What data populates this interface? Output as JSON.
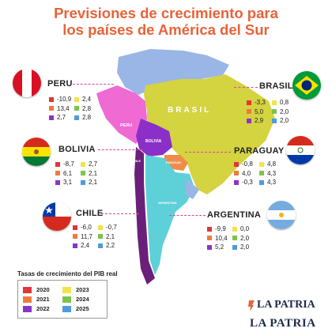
{
  "title_line1": "Previsiones de crecimiento para",
  "title_line2": "los países de América del Sur",
  "map_labels": {
    "brasil": "BRASIL",
    "peru": "PERU",
    "bolivia": "BOLIVIA",
    "paraguay": "PARAGUAY",
    "argentina": "ARGENTINA",
    "chile": "CHILE"
  },
  "colors": {
    "2020": "#e2343b",
    "2021": "#ef7b3a",
    "2022": "#8b34c9",
    "2023": "#f0e44a",
    "2024": "#7cc44a",
    "2025": "#4e9be0"
  },
  "countries": {
    "peru": {
      "name": "PERU",
      "values": [
        "-10,9",
        "2,4",
        "13,4",
        "2,8",
        "2,7",
        "2,8"
      ]
    },
    "brasil": {
      "name": "BRASIL",
      "values": [
        "-3,3",
        "0,8",
        "5,0",
        "2,0",
        "2,9",
        "2,0"
      ]
    },
    "bolivia": {
      "name": "BOLIVIA",
      "values": [
        "-8,7",
        "2,7",
        "6,1",
        "2,1",
        "3,1",
        "2,1"
      ]
    },
    "paraguay": {
      "name": "PARAGUAY",
      "values": [
        "-0,8",
        "4,8",
        "4,0",
        "4,3",
        "-0,3",
        "4,3"
      ]
    },
    "chile": {
      "name": "CHILE",
      "values": [
        "-6,0",
        "-0,7",
        "11,7",
        "2,1",
        "2,4",
        "2,2"
      ]
    },
    "argentina": {
      "name": "ARGENTINA",
      "values": [
        "-9,9",
        "0,0",
        "10,4",
        "2,0",
        "5,2",
        "2,0"
      ]
    }
  },
  "legend": {
    "title": "Tasas de crecimiento del PIB real",
    "years": [
      "2020",
      "2023",
      "2021",
      "2024",
      "2022",
      "2025"
    ]
  },
  "logo": {
    "line1": "LA PATRIA",
    "line2": "LA PATRIA"
  }
}
